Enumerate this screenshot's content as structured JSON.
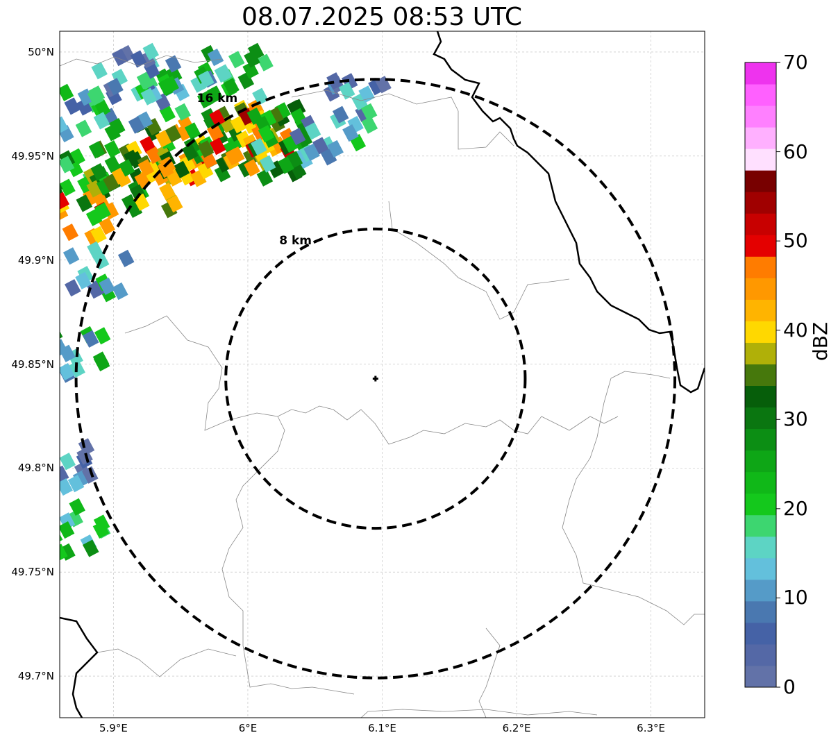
{
  "title": "08.07.2025 08:53 UTC",
  "map": {
    "lon_range": [
      5.86,
      6.34
    ],
    "lat_range": [
      49.68,
      50.01
    ],
    "radar_site": {
      "lon": 6.095,
      "lat": 49.843
    },
    "gridlines": true,
    "lat_ticks": [
      {
        "value": 50.0,
        "label": "50°N"
      },
      {
        "value": 49.95,
        "label": "49.95°N"
      },
      {
        "value": 49.9,
        "label": "49.9°N"
      },
      {
        "value": 49.85,
        "label": "49.85°N"
      },
      {
        "value": 49.8,
        "label": "49.8°N"
      },
      {
        "value": 49.75,
        "label": "49.75°N"
      },
      {
        "value": 49.7,
        "label": "49.7°N"
      }
    ],
    "lon_ticks": [
      {
        "value": 5.9,
        "label": "5.9°E"
      },
      {
        "value": 6.0,
        "label": "6°E"
      },
      {
        "value": 6.1,
        "label": "6.1°E"
      },
      {
        "value": 6.2,
        "label": "6.2°E"
      },
      {
        "value": 6.3,
        "label": "6.3°E"
      }
    ],
    "range_rings": [
      {
        "km": 8,
        "label": "8 km"
      },
      {
        "km": 16,
        "label": "16 km"
      }
    ]
  },
  "colorbar": {
    "label": "dBZ",
    "min": 0,
    "max": 70,
    "ticks": [
      "0",
      "10",
      "20",
      "30",
      "40",
      "50",
      "60",
      "70"
    ],
    "colors": [
      "#6272a8",
      "#5468a6",
      "#4562a6",
      "#4a78b0",
      "#559bc8",
      "#63c0dc",
      "#5dd4c4",
      "#3dd670",
      "#14c81c",
      "#10b818",
      "#0ea616",
      "#0c8e14",
      "#0a7610",
      "#065e0a",
      "#46780c",
      "#b0b008",
      "#ffd800",
      "#ffb400",
      "#ff9800",
      "#ff7c00",
      "#e40000",
      "#c80000",
      "#a00000",
      "#780000",
      "#ffe0ff",
      "#ffb0ff",
      "#ff80ff",
      "#ff60ff",
      "#ee33ee"
    ]
  },
  "echoes": [
    {
      "lon": 5.88,
      "lat": 49.97,
      "dbz": 15
    },
    {
      "lon": 5.87,
      "lat": 49.94,
      "dbz": 25
    },
    {
      "lon": 5.875,
      "lat": 49.92,
      "dbz": 44
    },
    {
      "lon": 5.9,
      "lat": 49.93,
      "dbz": 27
    },
    {
      "lon": 5.905,
      "lat": 49.945,
      "dbz": 33
    },
    {
      "lon": 5.92,
      "lat": 49.955,
      "dbz": 30
    },
    {
      "lon": 5.94,
      "lat": 49.935,
      "dbz": 40
    },
    {
      "lon": 5.945,
      "lat": 49.955,
      "dbz": 44
    },
    {
      "lon": 5.96,
      "lat": 49.95,
      "dbz": 36
    },
    {
      "lon": 5.98,
      "lat": 49.96,
      "dbz": 28
    },
    {
      "lon": 5.99,
      "lat": 49.955,
      "dbz": 38
    },
    {
      "lon": 6.0,
      "lat": 49.965,
      "dbz": 42
    },
    {
      "lon": 6.01,
      "lat": 49.96,
      "dbz": 45
    },
    {
      "lon": 6.02,
      "lat": 49.965,
      "dbz": 30
    },
    {
      "lon": 6.03,
      "lat": 49.95,
      "dbz": 24
    },
    {
      "lon": 5.99,
      "lat": 49.99,
      "dbz": 20
    },
    {
      "lon": 5.96,
      "lat": 49.985,
      "dbz": 17
    },
    {
      "lon": 5.93,
      "lat": 49.975,
      "dbz": 14
    },
    {
      "lon": 5.91,
      "lat": 49.99,
      "dbz": 9
    },
    {
      "lon": 5.89,
      "lat": 49.895,
      "dbz": 12
    },
    {
      "lon": 5.87,
      "lat": 49.855,
      "dbz": 18
    },
    {
      "lon": 5.865,
      "lat": 49.8,
      "dbz": 8
    },
    {
      "lon": 5.87,
      "lat": 49.77,
      "dbz": 22
    },
    {
      "lon": 6.08,
      "lat": 49.975,
      "dbz": 10
    },
    {
      "lon": 6.06,
      "lat": 49.96,
      "dbz": 12
    }
  ]
}
